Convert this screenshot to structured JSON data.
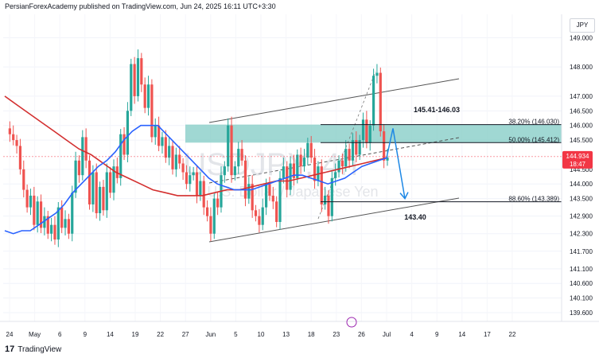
{
  "header": {
    "publisher_line": "PersianForexAcademy published on TradingView.com, Jun 24, 2025 16:11 UTC+3:30",
    "currency": "JPY"
  },
  "brand": {
    "logo": "17",
    "name": "TradingView"
  },
  "colors": {
    "up_candle": "#26a69a",
    "down_candle": "#ef5350",
    "ma_fast": "#2962ff",
    "ma_slow": "#d32f2f",
    "zone": "#80cbc4",
    "arrow": "#1e88e5",
    "price_badge": "#f23645"
  },
  "chart_data": {
    "type": "candlestick",
    "symbol_watermark": "USDJPY, 4h",
    "watermark_subtitle": "U.S. Dollar / Japanese Yen",
    "x_ticks": [
      "24",
      "May",
      "6",
      "9",
      "14",
      "19",
      "22",
      "27",
      "Jun",
      "5",
      "10",
      "13",
      "18",
      "23",
      "26",
      "Jul",
      "4",
      "9",
      "14",
      "17",
      "22"
    ],
    "y_ticks": [
      149.0,
      148.0,
      147.0,
      146.5,
      146.0,
      145.5,
      144.5,
      144.0,
      143.5,
      142.9,
      142.3,
      141.7,
      141.1,
      140.6,
      140.1,
      139.6
    ],
    "y_tick_labels": [
      "149.000",
      "148.000",
      "147.000",
      "146.500",
      "146.000",
      "145.500",
      "144.500",
      "144.000",
      "143.500",
      "142.900",
      "142.300",
      "141.700",
      "141.100",
      "140.600",
      "140.100",
      "139.600"
    ],
    "ylim": [
      139.3,
      149.8
    ],
    "current_price": {
      "value": 144.934,
      "label": "144.934",
      "countdown": "18:47"
    },
    "fib_levels": [
      {
        "ratio": "38.20%",
        "price": 146.03,
        "label": "38.20% (146.030)"
      },
      {
        "ratio": "50.00%",
        "price": 145.412,
        "label": "50.00% (145.412)"
      },
      {
        "ratio": "88.60%",
        "price": 143.389,
        "label": "88.60% (143.389)"
      }
    ],
    "annotations": [
      {
        "text": "145.41-146.03"
      },
      {
        "text": "143.40"
      }
    ],
    "price_path": [
      145.9,
      145.7,
      145.5,
      145.3,
      144.5,
      143.8,
      143.2,
      143.6,
      142.6,
      143.4,
      142.5,
      142.9,
      142.3,
      142.6,
      142.1,
      143.2,
      142.5,
      142.8,
      142.3,
      143.7,
      144.8,
      144.3,
      145.6,
      144.8,
      143.3,
      144.4,
      143.0,
      143.9,
      143.1,
      144.4,
      143.7,
      144.6,
      144.2,
      145.7,
      145.0,
      146.5,
      148.1,
      147.0,
      148.3,
      147.4,
      146.6,
      147.4,
      145.6,
      146.0,
      145.3,
      145.6,
      144.9,
      145.3,
      144.5,
      145.0,
      144.7,
      144.4,
      144.0,
      144.3,
      144.4,
      143.6,
      144.1,
      143.2,
      142.9,
      142.3,
      143.5,
      143.2,
      144.3,
      144.6,
      146.0,
      144.3,
      144.6,
      145.2,
      144.8,
      143.5,
      144.0,
      143.1,
      142.9,
      142.6,
      143.2,
      144.0,
      143.6,
      143.4,
      142.7,
      144.2,
      144.6,
      143.8,
      144.7,
      144.2,
      145.0,
      144.6,
      144.9,
      145.4,
      144.9,
      144.1,
      144.6,
      143.3,
      143.6,
      142.9,
      144.2,
      144.4,
      144.8,
      144.6,
      145.2,
      144.8,
      145.5,
      145.0,
      145.5,
      146.2,
      145.4,
      146.0,
      147.7,
      147.8,
      145.8,
      144.8,
      144.9
    ],
    "ma_fast": [
      142.4,
      142.3,
      142.4,
      142.4,
      142.6,
      142.8,
      143.0,
      143.3,
      143.7,
      144.0,
      144.3,
      144.6,
      144.8,
      145.1,
      145.5,
      145.8,
      146.0,
      146.0,
      146.0,
      145.7,
      145.4,
      145.1,
      144.8,
      144.5,
      144.2,
      144.0,
      143.9,
      143.8,
      143.8,
      143.8,
      143.9,
      144.0,
      144.1,
      144.2,
      144.3,
      144.3,
      144.2,
      144.1,
      144.0,
      144.1,
      144.2,
      144.4,
      144.6,
      144.7,
      144.8,
      144.9
    ],
    "ma_slow": [
      147.0,
      146.7,
      146.4,
      146.1,
      145.8,
      145.5,
      145.2,
      145.0,
      144.7,
      144.4,
      144.2,
      144.0,
      143.8,
      143.7,
      143.6,
      143.6,
      143.6,
      143.7,
      143.8,
      143.8,
      143.9,
      144.0,
      144.1,
      144.1,
      144.2,
      144.3,
      144.4,
      144.5,
      144.6,
      144.7,
      144.8,
      144.9
    ]
  }
}
